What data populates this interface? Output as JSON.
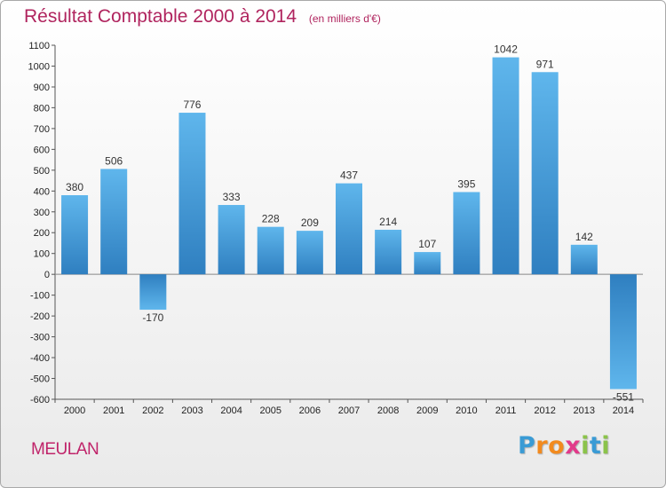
{
  "chart_data": {
    "type": "bar",
    "title": "Résultat Comptable 2000 à 2014",
    "subtitle": "(en milliers d'€)",
    "xlabel": "",
    "ylabel": "",
    "categories": [
      "2000",
      "2001",
      "2002",
      "2003",
      "2004",
      "2005",
      "2006",
      "2007",
      "2008",
      "2009",
      "2010",
      "2011",
      "2012",
      "2013",
      "2014"
    ],
    "values": [
      380,
      506,
      -170,
      776,
      333,
      228,
      209,
      437,
      214,
      107,
      395,
      1042,
      971,
      142,
      -551
    ],
    "ylim": [
      -600,
      1100
    ],
    "yticks": [
      1100,
      1000,
      900,
      800,
      700,
      600,
      500,
      400,
      300,
      200,
      100,
      0,
      -100,
      -200,
      -300,
      -400,
      -500,
      -600
    ],
    "grid": false,
    "legend": "none",
    "bar_color_light": "#5db3ea",
    "bar_color_dark": "#2f7fc0"
  },
  "footer": {
    "commune": "MEULAN",
    "logo_letters": [
      "P",
      "r",
      "o",
      "x",
      "i",
      "t",
      "i"
    ],
    "logo_colors": [
      "#3a9bd5",
      "#f28a1e",
      "#f28a1e",
      "#e23a8a",
      "#8bc34a",
      "#3a9bd5",
      "#8bc34a"
    ]
  }
}
